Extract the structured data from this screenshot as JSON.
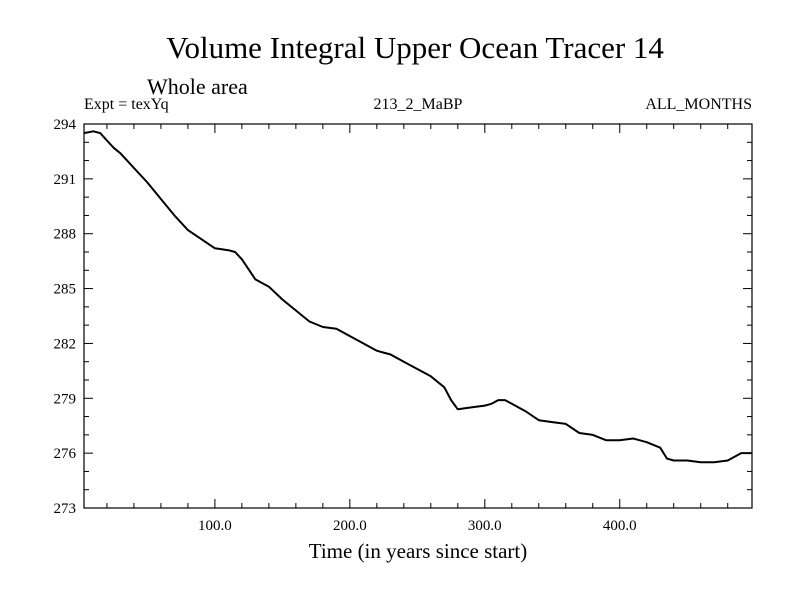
{
  "chart_data": {
    "type": "line",
    "title": "Volume Integral Upper Ocean Tracer 14",
    "subtitle": "Whole area",
    "header_left": "Expt = texYq",
    "header_center": "213_2_MaBP",
    "header_right": "ALL_MONTHS",
    "xlabel": "Time (in years since start)",
    "ylabel": "",
    "xlim": [
      3,
      498
    ],
    "ylim": [
      273,
      294
    ],
    "x_ticks": [
      100,
      200,
      300,
      400
    ],
    "x_tick_labels": [
      "100.0",
      "200.0",
      "300.0",
      "400.0"
    ],
    "y_ticks": [
      273,
      276,
      279,
      282,
      285,
      288,
      291,
      294
    ],
    "y_tick_labels": [
      "273",
      "276",
      "279",
      "282",
      "285",
      "288",
      "291",
      "294"
    ],
    "grid": false,
    "legend": "none",
    "series": [
      {
        "x": [
          3,
          10,
          15,
          20,
          25,
          30,
          40,
          50,
          60,
          70,
          80,
          90,
          100,
          110,
          115,
          120,
          130,
          140,
          150,
          160,
          170,
          180,
          190,
          200,
          210,
          220,
          225,
          230,
          240,
          250,
          260,
          270,
          275,
          280,
          290,
          300,
          305,
          310,
          315,
          320,
          330,
          340,
          350,
          360,
          370,
          380,
          390,
          400,
          410,
          420,
          430,
          435,
          440,
          450,
          460,
          470,
          480,
          490,
          498
        ],
        "y": [
          293.5,
          293.6,
          293.5,
          293.1,
          292.7,
          292.4,
          291.6,
          290.8,
          289.9,
          289.0,
          288.2,
          287.7,
          287.2,
          287.1,
          287.0,
          286.6,
          285.5,
          285.1,
          284.4,
          283.8,
          283.2,
          282.9,
          282.8,
          282.4,
          282.0,
          281.6,
          281.5,
          281.4,
          281.0,
          280.6,
          280.2,
          279.6,
          278.9,
          278.4,
          278.5,
          278.6,
          278.7,
          278.9,
          278.9,
          278.7,
          278.3,
          277.8,
          277.7,
          277.6,
          277.1,
          277.0,
          276.7,
          276.7,
          276.8,
          276.6,
          276.3,
          275.7,
          275.6,
          275.6,
          275.5,
          275.5,
          275.6,
          276.0,
          276.0
        ]
      }
    ],
    "line_color": "#000000"
  }
}
